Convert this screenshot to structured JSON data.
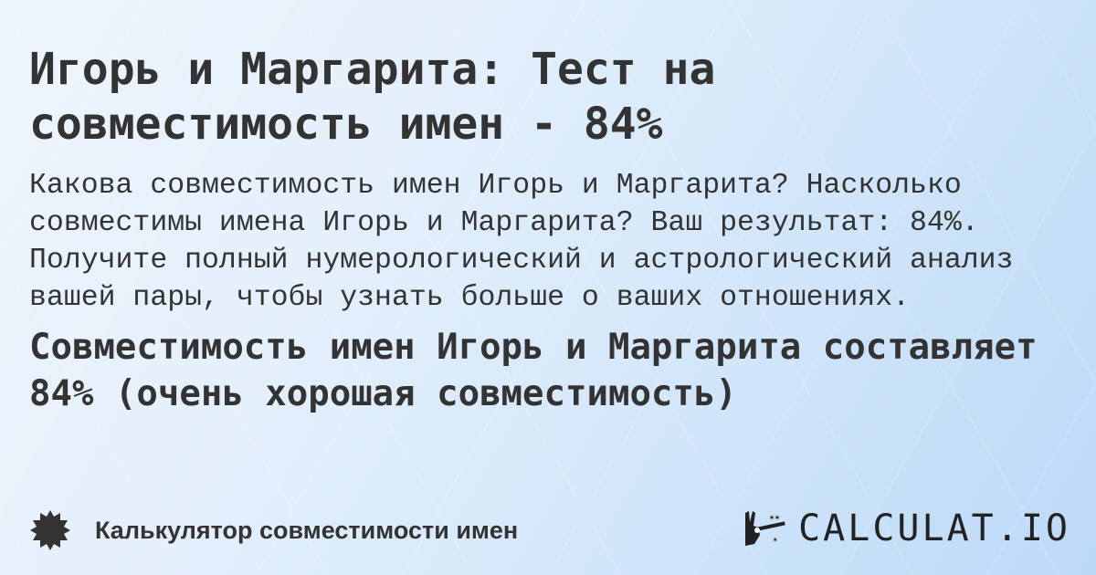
{
  "title": "Игорь и Маргарита: Тест на совместимость имен - 84%",
  "description": "Какова совместимость имен Игорь и Маргарита? Насколько совместимы имена Игорь и Маргарита? Ваш результат: 84%. Получите полный нумерологический и астрологический анализ вашей пары, чтобы узнать больше о ваших отношениях.",
  "result": "Совместимость имен Игорь и Маргарита составляет 84% (очень хорошая совместимость)",
  "footer": {
    "label": "Калькулятор совместимости имен",
    "icon": "badge-icon"
  },
  "logo": {
    "text": "CALCULAT.IO",
    "icon": "magic-hand-icon"
  },
  "colors": {
    "text": "#333333",
    "background": "#dbeafa"
  }
}
